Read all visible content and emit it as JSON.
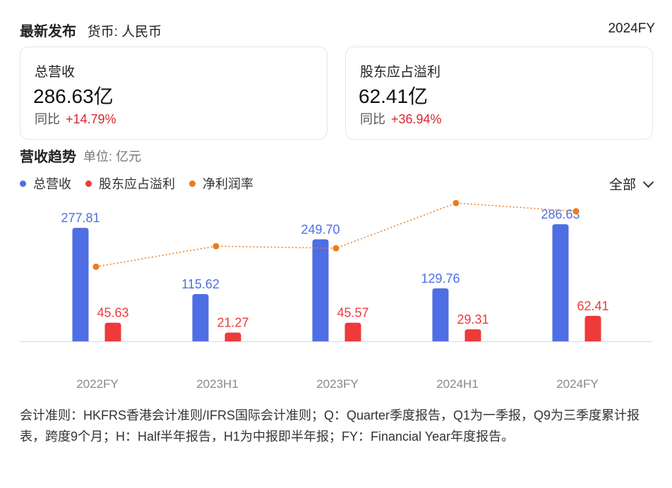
{
  "header": {
    "title": "最新发布",
    "currency": "货币: 人民币",
    "period": "2024FY"
  },
  "cards": [
    {
      "label": "总营收",
      "value": "286.63亿",
      "yoy_label": "同比",
      "yoy": "+14.79%"
    },
    {
      "label": "股东应占溢利",
      "value": "62.41亿",
      "yoy_label": "同比",
      "yoy": "+36.94%"
    }
  ],
  "section": {
    "title": "营收趋势",
    "unit": "单位: 亿元"
  },
  "filter": {
    "label": "全部"
  },
  "colors": {
    "revenue": "#4f6ee4",
    "profit": "#ee3a3a",
    "margin": "#ef7a1a",
    "up": "#d9262f"
  },
  "chart_data": {
    "type": "bar",
    "categories": [
      "2022FY",
      "2023H1",
      "2023FY",
      "2024H1",
      "2024FY"
    ],
    "series": [
      {
        "name": "总营收",
        "type": "bar",
        "values": [
          277.81,
          115.62,
          249.7,
          129.76,
          286.63
        ],
        "labels": [
          "277.81",
          "115.62",
          "249.70",
          "129.76",
          "286.63"
        ]
      },
      {
        "name": "股东应占溢利",
        "type": "bar",
        "values": [
          45.63,
          21.27,
          45.57,
          29.31,
          62.41
        ],
        "labels": [
          "45.63",
          "21.27",
          "45.57",
          "29.31",
          "62.41"
        ]
      },
      {
        "name": "净利润率",
        "type": "line",
        "values": [
          16.4,
          18.4,
          18.2,
          22.6,
          21.8
        ]
      }
    ],
    "legend_position": "top-left"
  },
  "note": "会计准则：HKFRS香港会计准则/IFRS国际会计准则；Q：Quarter季度报告，Q1为一季报，Q9为三季度累计报表，跨度9个月；H：Half半年报告，H1为中报即半年报；FY：Financial Year年度报告。"
}
